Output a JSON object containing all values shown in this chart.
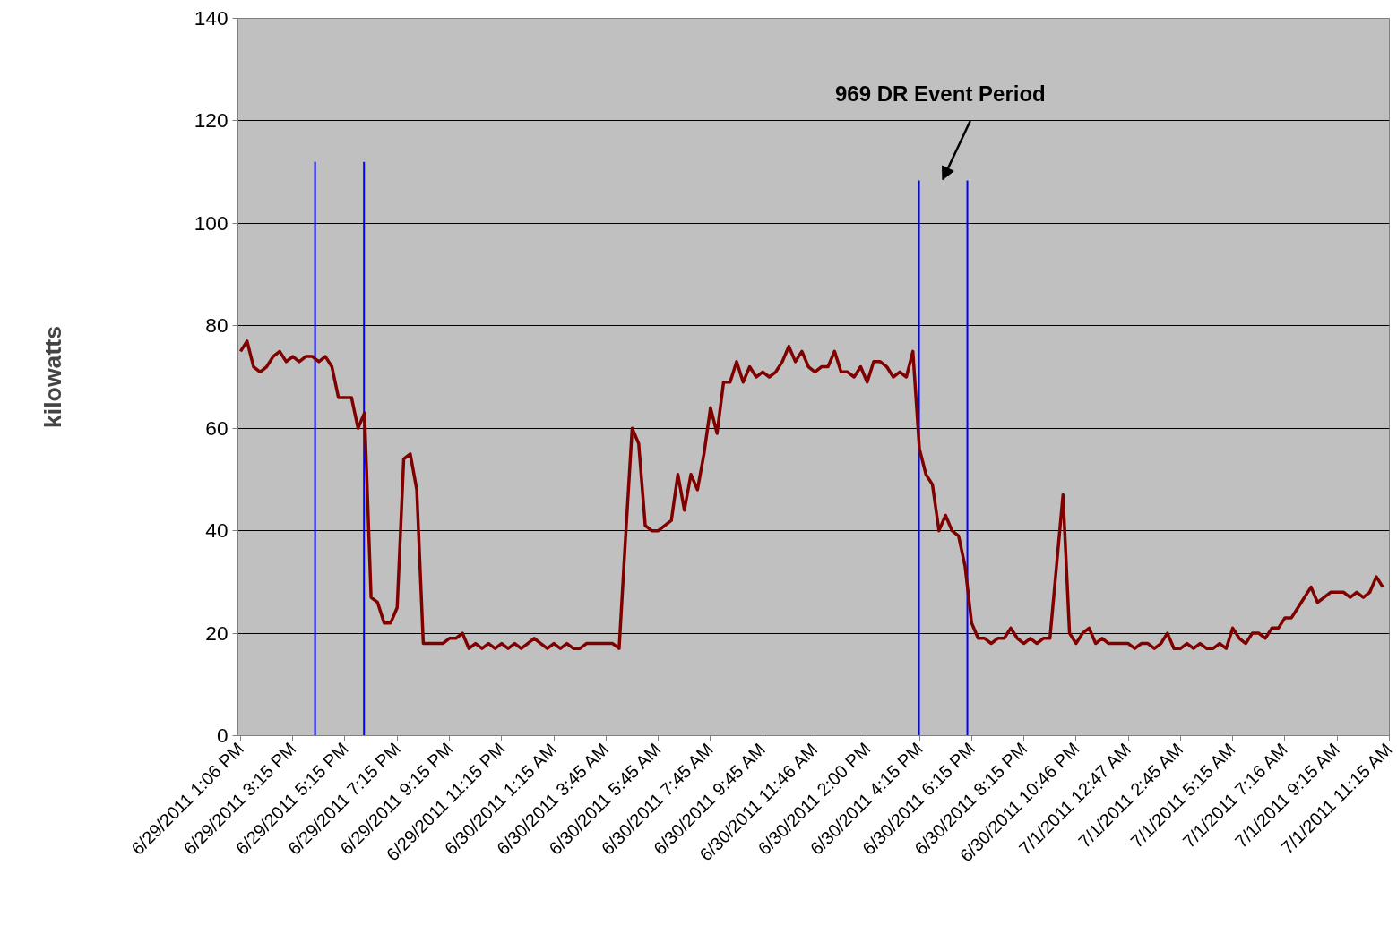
{
  "chart_data": {
    "type": "line",
    "ylabel": "kilowatts",
    "categories": [
      "6/29/2011 1:06 PM",
      null,
      null,
      null,
      null,
      null,
      null,
      null,
      "6/29/2011 3:15 PM",
      null,
      null,
      null,
      null,
      null,
      null,
      null,
      "6/29/2011 5:15 PM",
      null,
      null,
      null,
      null,
      null,
      null,
      null,
      "6/29/2011 7:15 PM",
      null,
      null,
      null,
      null,
      null,
      null,
      null,
      "6/29/2011 9:15 PM",
      null,
      null,
      null,
      null,
      null,
      null,
      null,
      "6/29/2011 11:15 PM",
      null,
      null,
      null,
      null,
      null,
      null,
      null,
      "6/30/2011 1:15 AM",
      null,
      null,
      null,
      null,
      null,
      null,
      null,
      "6/30/2011 3:45 AM",
      null,
      null,
      null,
      null,
      null,
      null,
      null,
      "6/30/2011 5:45 AM",
      null,
      null,
      null,
      null,
      null,
      null,
      null,
      "6/30/2011 7:45 AM",
      null,
      null,
      null,
      null,
      null,
      null,
      null,
      "6/30/2011 9:45 AM",
      null,
      null,
      null,
      null,
      null,
      null,
      null,
      "6/30/2011 11:46 AM",
      null,
      null,
      null,
      null,
      null,
      null,
      null,
      "6/30/2011 2:00 PM",
      null,
      null,
      null,
      null,
      null,
      null,
      null,
      "6/30/2011 4:15 PM",
      null,
      null,
      null,
      null,
      null,
      null,
      null,
      "6/30/2011 6:15 PM",
      null,
      null,
      null,
      null,
      null,
      null,
      null,
      "6/30/2011 8:15 PM",
      null,
      null,
      null,
      null,
      null,
      null,
      null,
      "6/30/2011 10:46 PM",
      null,
      null,
      null,
      null,
      null,
      null,
      null,
      "7/1/2011 12:47 AM",
      null,
      null,
      null,
      null,
      null,
      null,
      null,
      "7/1/2011 2:45 AM",
      null,
      null,
      null,
      null,
      null,
      null,
      null,
      "7/1/2011 5:15 AM",
      null,
      null,
      null,
      null,
      null,
      null,
      null,
      "7/1/2011 7:16 AM",
      null,
      null,
      null,
      null,
      null,
      null,
      null,
      "7/1/2011 9:15 AM",
      null,
      null,
      null,
      null,
      null,
      null,
      null,
      "7/1/2011 11:15 AM"
    ],
    "series": [
      {
        "color": "#800000",
        "values": [
          75,
          77,
          72,
          71,
          72,
          74,
          75,
          73,
          74,
          73,
          74,
          74,
          73,
          74,
          72,
          66,
          66,
          66,
          60,
          63,
          27,
          26,
          22,
          22,
          25,
          54,
          55,
          48,
          18,
          18,
          18,
          18,
          19,
          19,
          20,
          17,
          18,
          17,
          18,
          17,
          18,
          17,
          18,
          17,
          18,
          19,
          18,
          17,
          18,
          17,
          18,
          17,
          17,
          18,
          18,
          18,
          18,
          18,
          17,
          39,
          60,
          57,
          41,
          40,
          40,
          41,
          42,
          51,
          44,
          51,
          48,
          55,
          64,
          59,
          69,
          69,
          73,
          69,
          72,
          70,
          71,
          70,
          71,
          73,
          76,
          73,
          75,
          72,
          71,
          72,
          72,
          75,
          71,
          71,
          70,
          72,
          69,
          73,
          73,
          72,
          70,
          71,
          70,
          75,
          56,
          51,
          49,
          40,
          43,
          40,
          39,
          33,
          22,
          19,
          19,
          18,
          19,
          19,
          21,
          19,
          18,
          19,
          18,
          19,
          19,
          33,
          47,
          20,
          18,
          20,
          21,
          18,
          19,
          18,
          18,
          18,
          18,
          17,
          18,
          18,
          17,
          18,
          20,
          17,
          17,
          18,
          17,
          18,
          17,
          17,
          18,
          17,
          21,
          19,
          18,
          20,
          20,
          19,
          21,
          21,
          23,
          23,
          25,
          27,
          29,
          26,
          27,
          28,
          28,
          28,
          27,
          28,
          27,
          28,
          31,
          29,
          null
        ]
      }
    ],
    "ylim": [
      0,
      140
    ],
    "yticks": [
      0,
      20,
      40,
      60,
      80,
      100,
      120,
      140
    ],
    "grid": "y",
    "line_style": "solid",
    "annotations": [
      "969 DR Event Period"
    ]
  }
}
